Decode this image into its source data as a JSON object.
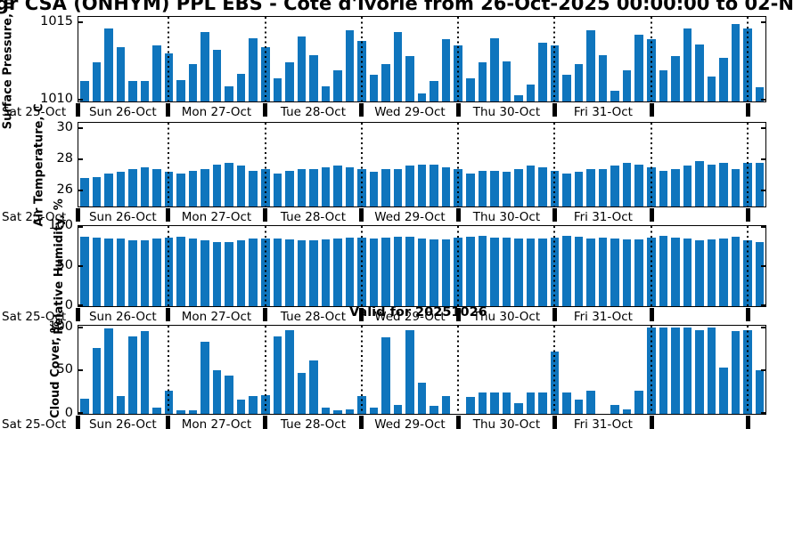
{
  "title": "gr CSA (ONHYM) PPL EBS  - Cote d'Ivorie from 26-Oct-2025 00:00:00 to 02-N",
  "watermark": "Valid for 20251026",
  "bar_color": "#0f75bd",
  "x_axis": {
    "first_label": "Sat 25-Oct",
    "day_labels": [
      "Sun 26-Oct",
      "Mon 27-Oct",
      "Tue 28-Oct",
      "Wed 29-Oct",
      "Thu 30-Oct",
      "Fri 31-Oct"
    ],
    "bars_first_day": 7,
    "bars_per_day": 8,
    "time_step_hours": 3
  },
  "chart_data": [
    {
      "type": "bar",
      "ylabel": "Surface Pressure, mb",
      "yticks": [
        1010,
        1015
      ],
      "ylim": [
        1009.9,
        1015.35
      ],
      "values": [
        1011.2,
        1012.4,
        1014.6,
        1013.4,
        1011.2,
        1011.2,
        1013.5,
        1013.0,
        1011.3,
        1012.3,
        1014.4,
        1013.2,
        1010.9,
        1011.7,
        1014.0,
        1013.4,
        1011.4,
        1012.4,
        1014.1,
        1012.9,
        1010.9,
        1011.9,
        1014.5,
        1013.8,
        1011.6,
        1012.3,
        1014.4,
        1012.8,
        1010.4,
        1011.2,
        1013.9,
        1013.5,
        1011.4,
        1012.4,
        1014.0,
        1012.5,
        1010.3,
        1011.0,
        1013.7,
        1013.5,
        1011.6,
        1012.3,
        1014.5,
        1012.9,
        1010.6,
        1011.9,
        1014.2,
        1013.9,
        1011.9,
        1012.8,
        1014.6,
        1013.6,
        1011.5,
        1012.7,
        1014.9,
        1014.6,
        1010.8
      ]
    },
    {
      "type": "bar",
      "ylabel": "Air Temperature, C",
      "yticks": [
        26,
        28,
        30
      ],
      "ylim": [
        25.0,
        30.35
      ],
      "values": [
        26.8,
        26.9,
        27.1,
        27.2,
        27.4,
        27.5,
        27.4,
        27.2,
        27.1,
        27.3,
        27.4,
        27.7,
        27.8,
        27.6,
        27.3,
        27.4,
        27.1,
        27.3,
        27.4,
        27.4,
        27.5,
        27.6,
        27.5,
        27.4,
        27.2,
        27.4,
        27.4,
        27.6,
        27.7,
        27.7,
        27.5,
        27.4,
        27.1,
        27.3,
        27.3,
        27.2,
        27.4,
        27.6,
        27.5,
        27.3,
        27.1,
        27.2,
        27.4,
        27.4,
        27.6,
        27.8,
        27.7,
        27.5,
        27.3,
        27.4,
        27.6,
        27.9,
        27.7,
        27.8,
        27.4,
        27.8,
        27.8
      ]
    },
    {
      "type": "bar",
      "ylabel": "Relative Humidity, %",
      "yticks": [
        0,
        50,
        100
      ],
      "ylim": [
        0,
        100
      ],
      "values": [
        87,
        86,
        85,
        84,
        82,
        82,
        85,
        86,
        87,
        84,
        82,
        80,
        80,
        82,
        84,
        85,
        84,
        83,
        82,
        82,
        83,
        85,
        86,
        86,
        85,
        86,
        87,
        87,
        84,
        83,
        83,
        86,
        87,
        88,
        86,
        86,
        85,
        84,
        84,
        86,
        88,
        87,
        85,
        86,
        84,
        83,
        83,
        86,
        88,
        86,
        85,
        82,
        83,
        85,
        87,
        82,
        80
      ]
    },
    {
      "type": "bar",
      "ylabel": "Cloud Cover, %",
      "yticks": [
        0,
        50,
        100
      ],
      "ylim": [
        0,
        102
      ],
      "values": [
        18,
        76,
        99,
        21,
        90,
        96,
        7,
        27,
        4,
        4,
        83,
        50,
        44,
        17,
        21,
        22,
        90,
        97,
        47,
        62,
        7,
        4,
        5,
        21,
        7,
        89,
        10,
        97,
        36,
        9,
        21,
        0,
        20,
        25,
        25,
        25,
        12,
        25,
        25,
        72,
        25,
        17,
        27,
        0,
        10,
        5,
        27,
        100,
        100,
        100,
        100,
        97,
        100,
        54,
        96,
        97,
        50
      ]
    }
  ]
}
